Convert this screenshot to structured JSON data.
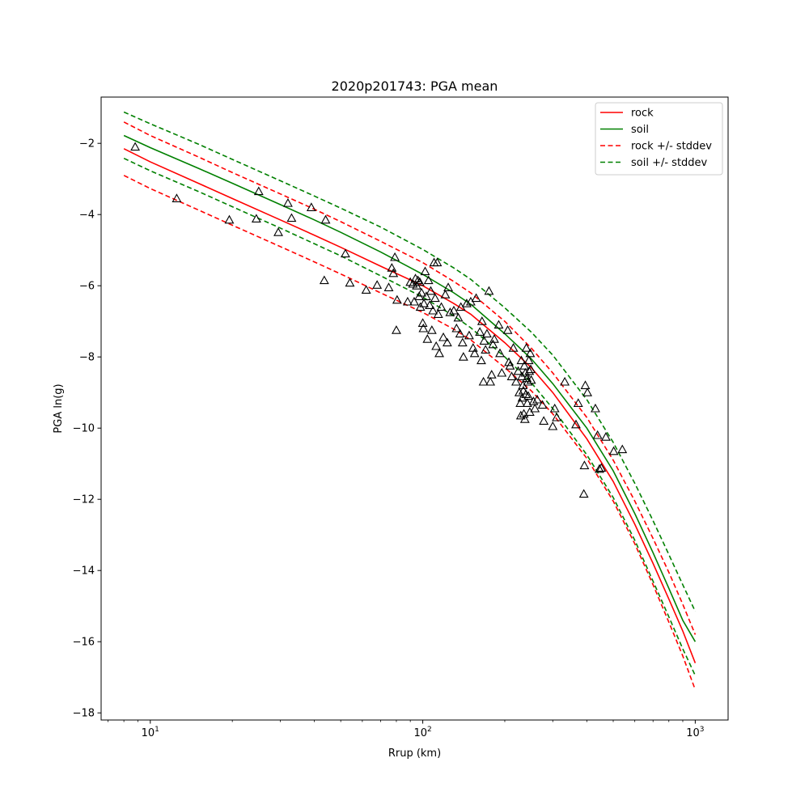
{
  "chart_data": {
    "type": "line",
    "title": "2020p201743: PGA mean",
    "xlabel": "Rrup (km)",
    "ylabel": "PGA ln(g)",
    "xscale": "log",
    "xlim": [
      6.6,
      1320
    ],
    "ylim": [
      -18.2,
      -0.7
    ],
    "grid": false,
    "legend_position": "top-right",
    "x_ticks": [
      {
        "value": 10,
        "base": "10",
        "exp": "1"
      },
      {
        "value": 100,
        "base": "10",
        "exp": "2"
      },
      {
        "value": 1000,
        "base": "10",
        "exp": "3"
      }
    ],
    "y_ticks": [
      -2,
      -4,
      -6,
      -8,
      -10,
      -12,
      -14,
      -16,
      -18
    ],
    "y_tick_labels": [
      "−2",
      "−4",
      "−6",
      "−8",
      "−10",
      "−12",
      "−14",
      "−16",
      "−18"
    ],
    "x": [
      8,
      10,
      15,
      20,
      30,
      40,
      50,
      70,
      100,
      130,
      150,
      200,
      250,
      300,
      400,
      500,
      600,
      700,
      800,
      900,
      1000
    ],
    "series": [
      {
        "name": "rock",
        "color": "#ff0000",
        "style": "solid",
        "values": [
          -2.15,
          -2.52,
          -3.12,
          -3.55,
          -4.15,
          -4.58,
          -4.92,
          -5.45,
          -6.0,
          -6.5,
          -6.8,
          -7.6,
          -8.3,
          -9.0,
          -10.3,
          -11.5,
          -12.7,
          -13.8,
          -14.8,
          -15.7,
          -16.6
        ]
      },
      {
        "name": "soil",
        "color": "#008000",
        "style": "solid",
        "values": [
          -1.78,
          -2.12,
          -2.7,
          -3.12,
          -3.72,
          -4.15,
          -4.5,
          -5.05,
          -5.68,
          -6.2,
          -6.52,
          -7.35,
          -8.05,
          -8.75,
          -10.0,
          -11.2,
          -12.4,
          -13.5,
          -14.5,
          -15.4,
          -16.0
        ]
      },
      {
        "name": "rock +/- stddev",
        "color": "#ff0000",
        "style": "dashed",
        "values": [
          -1.4,
          -1.78,
          -2.38,
          -2.82,
          -3.42,
          -3.85,
          -4.2,
          -4.75,
          -5.35,
          -5.88,
          -6.2,
          -7.0,
          -7.75,
          -8.45,
          -9.7,
          -10.9,
          -12.05,
          -13.1,
          -14.05,
          -14.95,
          -15.8
        ]
      },
      {
        "name": "",
        "color": "#ff0000",
        "style": "dashed",
        "values": [
          -2.9,
          -3.27,
          -3.87,
          -4.3,
          -4.9,
          -5.33,
          -5.67,
          -6.2,
          -6.75,
          -7.22,
          -7.52,
          -8.3,
          -8.95,
          -9.6,
          -10.85,
          -12.05,
          -13.25,
          -14.4,
          -15.45,
          -16.4,
          -17.35
        ]
      },
      {
        "name": "soil +/- stddev",
        "color": "#008000",
        "style": "dashed",
        "values": [
          -1.12,
          -1.45,
          -2.02,
          -2.45,
          -3.05,
          -3.48,
          -3.82,
          -4.35,
          -4.98,
          -5.5,
          -5.82,
          -6.62,
          -7.3,
          -7.95,
          -9.2,
          -10.4,
          -11.55,
          -12.6,
          -13.55,
          -14.4,
          -15.15
        ]
      },
      {
        "name": "",
        "color": "#008000",
        "style": "dashed",
        "values": [
          -2.42,
          -2.77,
          -3.35,
          -3.78,
          -4.38,
          -4.82,
          -5.16,
          -5.72,
          -6.32,
          -6.85,
          -7.18,
          -8.0,
          -8.72,
          -9.45,
          -10.75,
          -11.95,
          -13.15,
          -14.3,
          -15.3,
          -16.2,
          -16.95
        ]
      }
    ],
    "observations": {
      "marker": "triangle",
      "points": [
        [
          8.8,
          -2.1
        ],
        [
          12.5,
          -3.55
        ],
        [
          19.5,
          -4.15
        ],
        [
          24.5,
          -4.12
        ],
        [
          25,
          -3.35
        ],
        [
          29.5,
          -4.5
        ],
        [
          32,
          -3.68
        ],
        [
          33,
          -4.1
        ],
        [
          39,
          -3.8
        ],
        [
          43.5,
          -5.85
        ],
        [
          44,
          -4.15
        ],
        [
          52,
          -5.1
        ],
        [
          54,
          -5.92
        ],
        [
          62,
          -6.12
        ],
        [
          68,
          -5.98
        ],
        [
          75,
          -6.05
        ],
        [
          77,
          -5.5
        ],
        [
          78,
          -5.65
        ],
        [
          79,
          -5.2
        ],
        [
          80,
          -7.25
        ],
        [
          80.5,
          -6.4
        ],
        [
          88,
          -6.45
        ],
        [
          90,
          -5.9
        ],
        [
          92,
          -5.95
        ],
        [
          93,
          -6.45
        ],
        [
          94,
          -5.8
        ],
        [
          95,
          -6.0
        ],
        [
          96,
          -5.85
        ],
        [
          97,
          -6.3
        ],
        [
          97.5,
          -5.9
        ],
        [
          98,
          -6.6
        ],
        [
          99,
          -6.2
        ],
        [
          100,
          -7.05
        ],
        [
          100.5,
          -7.2
        ],
        [
          101,
          -6.5
        ],
        [
          102,
          -5.6
        ],
        [
          103,
          -6.3
        ],
        [
          104,
          -7.5
        ],
        [
          105,
          -5.85
        ],
        [
          106,
          -6.55
        ],
        [
          107,
          -6.15
        ],
        [
          108,
          -7.25
        ],
        [
          109,
          -6.7
        ],
        [
          110,
          -5.35
        ],
        [
          111,
          -6.35
        ],
        [
          112,
          -7.7
        ],
        [
          113,
          -5.35
        ],
        [
          114,
          -6.8
        ],
        [
          115,
          -7.9
        ],
        [
          117,
          -6.6
        ],
        [
          119,
          -7.45
        ],
        [
          121,
          -6.25
        ],
        [
          123,
          -7.6
        ],
        [
          124,
          -6.05
        ],
        [
          126,
          -6.75
        ],
        [
          130,
          -6.7
        ],
        [
          133,
          -7.2
        ],
        [
          135,
          -6.9
        ],
        [
          137,
          -7.35
        ],
        [
          138,
          -6.6
        ],
        [
          140,
          -7.6
        ],
        [
          141,
          -8.0
        ],
        [
          145,
          -6.5
        ],
        [
          148,
          -7.4
        ],
        [
          150,
          -6.45
        ],
        [
          153,
          -7.75
        ],
        [
          155,
          -7.9
        ],
        [
          157,
          -6.35
        ],
        [
          162,
          -7.3
        ],
        [
          164,
          -8.1
        ],
        [
          165,
          -7.0
        ],
        [
          167,
          -8.7
        ],
        [
          168,
          -7.55
        ],
        [
          170,
          -7.8
        ],
        [
          172,
          -7.35
        ],
        [
          175,
          -6.15
        ],
        [
          177,
          -8.7
        ],
        [
          179,
          -8.5
        ],
        [
          181,
          -7.65
        ],
        [
          183,
          -7.5
        ],
        [
          190,
          -7.1
        ],
        [
          192,
          -7.9
        ],
        [
          195,
          -8.45
        ],
        [
          205,
          -7.25
        ],
        [
          207,
          -8.15
        ],
        [
          209,
          -8.25
        ],
        [
          212,
          -8.55
        ],
        [
          215,
          -7.75
        ],
        [
          220,
          -8.7
        ],
        [
          224,
          -8.4
        ],
        [
          226,
          -9.0
        ],
        [
          228,
          -9.3
        ],
        [
          229,
          -9.65
        ],
        [
          230,
          -8.1
        ],
        [
          231,
          -8.55
        ],
        [
          232,
          -9.15
        ],
        [
          233,
          -8.8
        ],
        [
          234,
          -8.95
        ],
        [
          235,
          -9.6
        ],
        [
          236,
          -8.25
        ],
        [
          237,
          -9.75
        ],
        [
          238,
          -8.45
        ],
        [
          239,
          -9.05
        ],
        [
          240,
          -7.75
        ],
        [
          241,
          -8.6
        ],
        [
          242,
          -9.3
        ],
        [
          243,
          -8.7
        ],
        [
          244,
          -9.1
        ],
        [
          245,
          -8.1
        ],
        [
          246,
          -8.4
        ],
        [
          247,
          -9.55
        ],
        [
          248,
          -7.9
        ],
        [
          249,
          -8.35
        ],
        [
          250,
          -8.65
        ],
        [
          255,
          -9.25
        ],
        [
          258,
          -9.45
        ],
        [
          263,
          -9.2
        ],
        [
          275,
          -9.35
        ],
        [
          278,
          -9.8
        ],
        [
          300,
          -9.95
        ],
        [
          305,
          -9.45
        ],
        [
          310,
          -9.7
        ],
        [
          332,
          -8.7
        ],
        [
          365,
          -9.9
        ],
        [
          372,
          -9.3
        ],
        [
          390,
          -11.85
        ],
        [
          392,
          -11.05
        ],
        [
          395,
          -8.8
        ],
        [
          402,
          -9.0
        ],
        [
          430,
          -9.45
        ],
        [
          438,
          -10.2
        ],
        [
          445,
          -11.15
        ],
        [
          452,
          -11.12
        ],
        [
          470,
          -10.25
        ],
        [
          502,
          -10.65
        ],
        [
          540,
          -10.6
        ]
      ]
    },
    "legend": [
      "rock",
      "soil",
      "rock +/- stddev",
      "soil +/- stddev"
    ]
  }
}
